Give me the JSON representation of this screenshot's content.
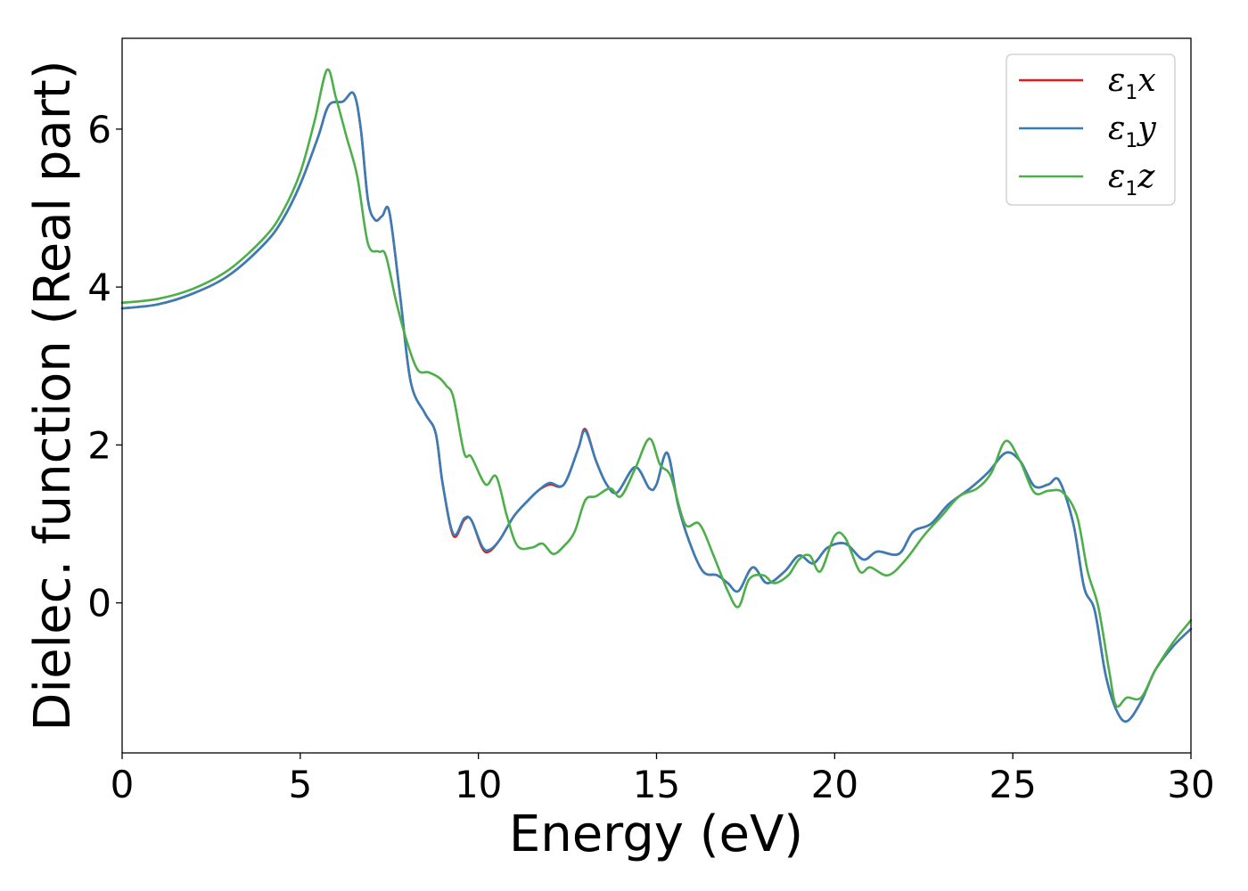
{
  "chart_data": {
    "type": "line",
    "xlabel": "Energy (eV)",
    "ylabel": "Dielec. function (Real part)",
    "xlim": [
      0,
      30
    ],
    "ylim": [
      -1.9,
      7.15
    ],
    "xticks": [
      0,
      5,
      10,
      15,
      20,
      25,
      30
    ],
    "yticks": [
      0,
      2,
      4,
      6
    ],
    "xtick_labels": [
      "0",
      "5",
      "10",
      "15",
      "20",
      "25",
      "30"
    ],
    "ytick_labels": [
      "0",
      "2",
      "4",
      "6"
    ],
    "grid": false,
    "legend_position": "top-right",
    "series": [
      {
        "name": "ε1x",
        "legend_symbol": "ε",
        "legend_sub": "1",
        "legend_var": "x",
        "color": "#e41a1c",
        "points": [
          [
            0,
            3.73
          ],
          [
            1,
            3.78
          ],
          [
            2,
            3.92
          ],
          [
            3,
            4.15
          ],
          [
            4,
            4.55
          ],
          [
            4.5,
            4.85
          ],
          [
            5,
            5.3
          ],
          [
            5.5,
            5.9
          ],
          [
            5.8,
            6.3
          ],
          [
            6.2,
            6.35
          ],
          [
            6.5,
            6.45
          ],
          [
            6.7,
            6.0
          ],
          [
            6.9,
            5.1
          ],
          [
            7.1,
            4.85
          ],
          [
            7.3,
            4.9
          ],
          [
            7.5,
            4.95
          ],
          [
            7.8,
            3.9
          ],
          [
            8.1,
            2.8
          ],
          [
            8.5,
            2.4
          ],
          [
            8.8,
            2.15
          ],
          [
            9.0,
            1.5
          ],
          [
            9.3,
            0.85
          ],
          [
            9.6,
            1.05
          ],
          [
            9.8,
            1.05
          ],
          [
            10.1,
            0.7
          ],
          [
            10.3,
            0.65
          ],
          [
            10.6,
            0.8
          ],
          [
            11.0,
            1.1
          ],
          [
            11.4,
            1.3
          ],
          [
            11.7,
            1.43
          ],
          [
            12.0,
            1.5
          ],
          [
            12.4,
            1.5
          ],
          [
            12.8,
            1.95
          ],
          [
            13.0,
            2.2
          ],
          [
            13.3,
            1.8
          ],
          [
            13.6,
            1.5
          ],
          [
            13.9,
            1.4
          ],
          [
            14.4,
            1.72
          ],
          [
            14.8,
            1.45
          ],
          [
            15.0,
            1.5
          ],
          [
            15.3,
            1.9
          ],
          [
            15.6,
            1.25
          ],
          [
            15.9,
            0.8
          ],
          [
            16.3,
            0.4
          ],
          [
            16.7,
            0.35
          ],
          [
            17.0,
            0.25
          ],
          [
            17.3,
            0.15
          ],
          [
            17.7,
            0.45
          ],
          [
            18.1,
            0.25
          ],
          [
            18.6,
            0.4
          ],
          [
            19.0,
            0.6
          ],
          [
            19.4,
            0.5
          ],
          [
            19.8,
            0.7
          ],
          [
            20.3,
            0.75
          ],
          [
            20.8,
            0.55
          ],
          [
            21.2,
            0.65
          ],
          [
            21.8,
            0.62
          ],
          [
            22.2,
            0.9
          ],
          [
            22.7,
            1.0
          ],
          [
            23.2,
            1.25
          ],
          [
            23.8,
            1.45
          ],
          [
            24.3,
            1.65
          ],
          [
            24.8,
            1.9
          ],
          [
            25.2,
            1.8
          ],
          [
            25.6,
            1.48
          ],
          [
            26.0,
            1.5
          ],
          [
            26.3,
            1.55
          ],
          [
            26.7,
            1.0
          ],
          [
            27.0,
            0.2
          ],
          [
            27.3,
            -0.1
          ],
          [
            27.6,
            -0.9
          ],
          [
            27.9,
            -1.35
          ],
          [
            28.2,
            -1.5
          ],
          [
            28.6,
            -1.25
          ],
          [
            29.0,
            -0.85
          ],
          [
            29.5,
            -0.55
          ],
          [
            30.0,
            -0.33
          ]
        ]
      },
      {
        "name": "ε1y",
        "legend_symbol": "ε",
        "legend_sub": "1",
        "legend_var": "y",
        "color": "#377eb8",
        "points": [
          [
            0,
            3.73
          ],
          [
            1,
            3.78
          ],
          [
            2,
            3.92
          ],
          [
            3,
            4.15
          ],
          [
            4,
            4.55
          ],
          [
            4.5,
            4.85
          ],
          [
            5,
            5.3
          ],
          [
            5.5,
            5.9
          ],
          [
            5.8,
            6.3
          ],
          [
            6.2,
            6.35
          ],
          [
            6.5,
            6.45
          ],
          [
            6.7,
            6.0
          ],
          [
            6.9,
            5.1
          ],
          [
            7.1,
            4.85
          ],
          [
            7.3,
            4.9
          ],
          [
            7.5,
            4.95
          ],
          [
            7.8,
            3.9
          ],
          [
            8.1,
            2.8
          ],
          [
            8.5,
            2.4
          ],
          [
            8.8,
            2.15
          ],
          [
            9.0,
            1.5
          ],
          [
            9.3,
            0.87
          ],
          [
            9.6,
            1.07
          ],
          [
            9.8,
            1.05
          ],
          [
            10.1,
            0.72
          ],
          [
            10.3,
            0.67
          ],
          [
            10.6,
            0.8
          ],
          [
            11.0,
            1.1
          ],
          [
            11.4,
            1.3
          ],
          [
            11.7,
            1.43
          ],
          [
            12.0,
            1.52
          ],
          [
            12.4,
            1.5
          ],
          [
            12.8,
            1.95
          ],
          [
            13.0,
            2.18
          ],
          [
            13.3,
            1.8
          ],
          [
            13.6,
            1.5
          ],
          [
            13.9,
            1.4
          ],
          [
            14.4,
            1.72
          ],
          [
            14.8,
            1.45
          ],
          [
            15.0,
            1.5
          ],
          [
            15.3,
            1.9
          ],
          [
            15.6,
            1.25
          ],
          [
            15.9,
            0.8
          ],
          [
            16.3,
            0.4
          ],
          [
            16.7,
            0.35
          ],
          [
            17.0,
            0.25
          ],
          [
            17.3,
            0.15
          ],
          [
            17.7,
            0.45
          ],
          [
            18.1,
            0.25
          ],
          [
            18.6,
            0.4
          ],
          [
            19.0,
            0.6
          ],
          [
            19.4,
            0.5
          ],
          [
            19.8,
            0.7
          ],
          [
            20.3,
            0.75
          ],
          [
            20.8,
            0.55
          ],
          [
            21.2,
            0.65
          ],
          [
            21.8,
            0.62
          ],
          [
            22.2,
            0.9
          ],
          [
            22.7,
            1.0
          ],
          [
            23.2,
            1.25
          ],
          [
            23.8,
            1.45
          ],
          [
            24.3,
            1.65
          ],
          [
            24.8,
            1.9
          ],
          [
            25.2,
            1.8
          ],
          [
            25.6,
            1.48
          ],
          [
            26.0,
            1.5
          ],
          [
            26.3,
            1.55
          ],
          [
            26.7,
            1.0
          ],
          [
            27.0,
            0.2
          ],
          [
            27.3,
            -0.1
          ],
          [
            27.6,
            -0.9
          ],
          [
            27.9,
            -1.35
          ],
          [
            28.2,
            -1.5
          ],
          [
            28.6,
            -1.25
          ],
          [
            29.0,
            -0.85
          ],
          [
            29.5,
            -0.55
          ],
          [
            30.0,
            -0.33
          ]
        ]
      },
      {
        "name": "ε1z",
        "legend_symbol": "ε",
        "legend_sub": "1",
        "legend_var": "z",
        "color": "#4daf4a",
        "points": [
          [
            0,
            3.8
          ],
          [
            1,
            3.85
          ],
          [
            2,
            3.98
          ],
          [
            3,
            4.22
          ],
          [
            4,
            4.63
          ],
          [
            4.5,
            4.95
          ],
          [
            5,
            5.45
          ],
          [
            5.4,
            6.1
          ],
          [
            5.75,
            6.75
          ],
          [
            6.0,
            6.4
          ],
          [
            6.3,
            5.9
          ],
          [
            6.6,
            5.4
          ],
          [
            6.9,
            4.55
          ],
          [
            7.2,
            4.45
          ],
          [
            7.4,
            4.4
          ],
          [
            7.7,
            3.8
          ],
          [
            8.0,
            3.3
          ],
          [
            8.3,
            2.95
          ],
          [
            8.6,
            2.92
          ],
          [
            8.9,
            2.85
          ],
          [
            9.1,
            2.75
          ],
          [
            9.3,
            2.6
          ],
          [
            9.6,
            1.9
          ],
          [
            9.8,
            1.85
          ],
          [
            10.2,
            1.5
          ],
          [
            10.5,
            1.6
          ],
          [
            10.8,
            1.1
          ],
          [
            11.1,
            0.72
          ],
          [
            11.5,
            0.7
          ],
          [
            11.8,
            0.75
          ],
          [
            12.1,
            0.62
          ],
          [
            12.4,
            0.72
          ],
          [
            12.7,
            0.9
          ],
          [
            13.0,
            1.3
          ],
          [
            13.3,
            1.35
          ],
          [
            13.7,
            1.45
          ],
          [
            14.0,
            1.35
          ],
          [
            14.4,
            1.7
          ],
          [
            14.8,
            2.08
          ],
          [
            15.1,
            1.75
          ],
          [
            15.4,
            1.6
          ],
          [
            15.8,
            1.0
          ],
          [
            16.2,
            1.0
          ],
          [
            16.6,
            0.6
          ],
          [
            17.0,
            0.15
          ],
          [
            17.3,
            -0.05
          ],
          [
            17.6,
            0.3
          ],
          [
            18.0,
            0.35
          ],
          [
            18.3,
            0.25
          ],
          [
            18.7,
            0.35
          ],
          [
            19.0,
            0.55
          ],
          [
            19.3,
            0.6
          ],
          [
            19.6,
            0.4
          ],
          [
            20.0,
            0.85
          ],
          [
            20.3,
            0.82
          ],
          [
            20.7,
            0.4
          ],
          [
            21.0,
            0.45
          ],
          [
            21.5,
            0.35
          ],
          [
            22.0,
            0.55
          ],
          [
            22.5,
            0.85
          ],
          [
            23.0,
            1.1
          ],
          [
            23.5,
            1.35
          ],
          [
            24.0,
            1.45
          ],
          [
            24.4,
            1.65
          ],
          [
            24.8,
            2.05
          ],
          [
            25.2,
            1.8
          ],
          [
            25.6,
            1.4
          ],
          [
            26.0,
            1.42
          ],
          [
            26.4,
            1.4
          ],
          [
            26.8,
            1.1
          ],
          [
            27.1,
            0.4
          ],
          [
            27.4,
            -0.05
          ],
          [
            27.7,
            -0.85
          ],
          [
            27.9,
            -1.3
          ],
          [
            28.2,
            -1.2
          ],
          [
            28.6,
            -1.2
          ],
          [
            29.0,
            -0.85
          ],
          [
            29.5,
            -0.5
          ],
          [
            30.0,
            -0.22
          ]
        ]
      }
    ]
  }
}
